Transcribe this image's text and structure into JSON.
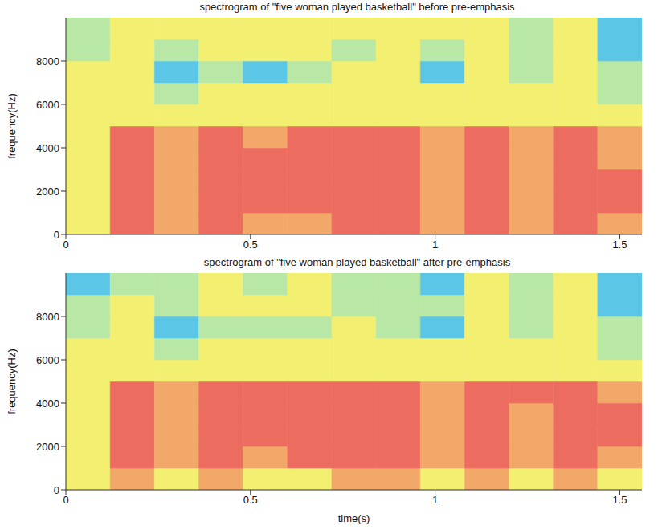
{
  "chart_data": [
    {
      "type": "heatmap",
      "title": "spectrogram of \"five woman played basketball\" before pre-emphasis",
      "y_label": "frequency(Hz)",
      "xlim": [
        0,
        1.56
      ],
      "xticks": [
        0,
        0.5,
        1,
        1.5
      ],
      "ylim": [
        0,
        10000
      ],
      "yticks": [
        0,
        2000,
        4000,
        6000,
        8000
      ],
      "zlim": [
        0,
        5
      ],
      "x_bins": [
        0,
        0.12,
        0.24,
        0.36,
        0.48,
        0.6,
        0.72,
        0.84,
        0.96,
        1.08,
        1.2,
        1.32,
        1.44,
        1.56
      ],
      "y_bins": [
        0,
        1000,
        2000,
        3000,
        4000,
        5000,
        6000,
        7000,
        8000,
        9000,
        10000
      ],
      "cells": [
        [
          3,
          5,
          4,
          5,
          4,
          4,
          5,
          5,
          4,
          5,
          4,
          5,
          4
        ],
        [
          3,
          5,
          4,
          5,
          5,
          5,
          5,
          5,
          4,
          5,
          4,
          5,
          5
        ],
        [
          3,
          5,
          4,
          5,
          5,
          5,
          5,
          5,
          4,
          5,
          4,
          5,
          5
        ],
        [
          3,
          5,
          4,
          5,
          5,
          5,
          5,
          5,
          4,
          5,
          4,
          5,
          4
        ],
        [
          3,
          5,
          4,
          5,
          4,
          5,
          5,
          5,
          4,
          5,
          4,
          5,
          4
        ],
        [
          3,
          3,
          3,
          3,
          3,
          3,
          3,
          3,
          3,
          3,
          3,
          3,
          3
        ],
        [
          3,
          3,
          2,
          3,
          3,
          3,
          3,
          3,
          3,
          3,
          3,
          3,
          2
        ],
        [
          3,
          3,
          1,
          2,
          1,
          2,
          3,
          3,
          1,
          3,
          2,
          3,
          2
        ],
        [
          2,
          3,
          2,
          3,
          3,
          3,
          2,
          3,
          2,
          3,
          2,
          3,
          1
        ],
        [
          2,
          3,
          3,
          3,
          3,
          3,
          3,
          3,
          3,
          3,
          2,
          3,
          1
        ]
      ]
    },
    {
      "type": "heatmap",
      "title": "spectrogram of \"five woman played basketball\" after pre-emphasis",
      "x_label": "time(s)",
      "y_label": "frequency(Hz)",
      "xlim": [
        0,
        1.56
      ],
      "xticks": [
        0,
        0.5,
        1,
        1.5
      ],
      "ylim": [
        0,
        10000
      ],
      "yticks": [
        0,
        2000,
        4000,
        6000,
        8000
      ],
      "zlim": [
        0,
        5
      ],
      "x_bins": [
        0,
        0.12,
        0.24,
        0.36,
        0.48,
        0.6,
        0.72,
        0.84,
        0.96,
        1.08,
        1.2,
        1.32,
        1.44,
        1.56
      ],
      "y_bins": [
        0,
        1000,
        2000,
        3000,
        4000,
        5000,
        6000,
        7000,
        8000,
        9000,
        10000
      ],
      "cells": [
        [
          3,
          4,
          3,
          4,
          3,
          3,
          4,
          4,
          3,
          4,
          3,
          4,
          3
        ],
        [
          3,
          5,
          4,
          5,
          4,
          5,
          5,
          5,
          4,
          5,
          4,
          5,
          4
        ],
        [
          3,
          5,
          4,
          5,
          5,
          5,
          5,
          5,
          4,
          5,
          4,
          5,
          5
        ],
        [
          3,
          5,
          4,
          5,
          5,
          5,
          5,
          5,
          4,
          5,
          4,
          5,
          5
        ],
        [
          3,
          5,
          4,
          5,
          5,
          5,
          5,
          5,
          4,
          5,
          5,
          5,
          4
        ],
        [
          3,
          3,
          3,
          3,
          3,
          3,
          3,
          3,
          3,
          3,
          3,
          3,
          3
        ],
        [
          3,
          3,
          2,
          3,
          3,
          3,
          3,
          3,
          3,
          3,
          3,
          3,
          2
        ],
        [
          2,
          3,
          1,
          2,
          2,
          2,
          3,
          2,
          1,
          3,
          2,
          3,
          2
        ],
        [
          2,
          3,
          2,
          3,
          3,
          3,
          2,
          2,
          2,
          3,
          2,
          3,
          1
        ],
        [
          1,
          2,
          2,
          3,
          2,
          3,
          2,
          2,
          1,
          3,
          2,
          3,
          1
        ]
      ]
    }
  ]
}
